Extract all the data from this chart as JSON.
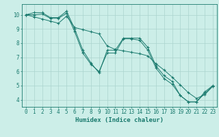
{
  "xlabel": "Humidex (Indice chaleur)",
  "bg_color": "#cceee8",
  "line_color": "#1a7a6e",
  "grid_color": "#aad4ce",
  "xlim": [
    -0.5,
    23.5
  ],
  "ylim": [
    3.5,
    10.75
  ],
  "yticks": [
    4,
    5,
    6,
    7,
    8,
    9,
    10
  ],
  "xticks": [
    0,
    1,
    2,
    3,
    4,
    5,
    6,
    7,
    8,
    9,
    10,
    11,
    12,
    13,
    14,
    15,
    16,
    17,
    18,
    19,
    20,
    21,
    22,
    23
  ],
  "label_fontsize": 6.5,
  "tick_fontsize": 5.5,
  "series1_x": [
    0,
    1,
    2,
    3,
    4,
    5,
    6,
    7,
    8,
    9,
    10,
    11,
    12,
    13,
    14,
    15,
    16,
    17,
    18,
    19,
    20,
    21,
    22,
    23
  ],
  "series1_y": [
    10.0,
    10.15,
    10.15,
    9.8,
    9.8,
    10.25,
    9.0,
    7.5,
    6.6,
    5.9,
    7.5,
    7.5,
    8.35,
    8.35,
    8.35,
    7.7,
    6.4,
    5.7,
    5.3,
    4.3,
    3.85,
    3.85,
    4.55,
    5.0
  ],
  "series2_x": [
    0,
    1,
    2,
    3,
    4,
    5,
    6,
    7,
    8,
    9,
    10,
    11,
    12,
    13,
    14,
    15,
    16,
    17,
    18,
    19,
    20,
    21,
    22,
    23
  ],
  "series2_y": [
    10.0,
    10.0,
    10.05,
    9.75,
    9.75,
    10.1,
    8.8,
    7.3,
    6.5,
    6.0,
    7.3,
    7.3,
    8.3,
    8.3,
    8.2,
    7.5,
    6.25,
    5.5,
    5.1,
    4.3,
    3.85,
    3.85,
    4.45,
    4.95
  ],
  "series3_x": [
    0,
    1,
    2,
    3,
    4,
    5,
    6,
    7,
    8,
    9,
    10,
    11,
    12,
    13,
    14,
    15,
    16,
    17,
    18,
    19,
    20,
    21,
    22,
    23
  ],
  "series3_y": [
    10.0,
    9.85,
    9.7,
    9.55,
    9.4,
    9.9,
    9.1,
    8.95,
    8.8,
    8.65,
    7.8,
    7.55,
    7.45,
    7.35,
    7.25,
    7.1,
    6.55,
    6.1,
    5.6,
    5.05,
    4.5,
    4.1,
    4.35,
    4.95
  ]
}
